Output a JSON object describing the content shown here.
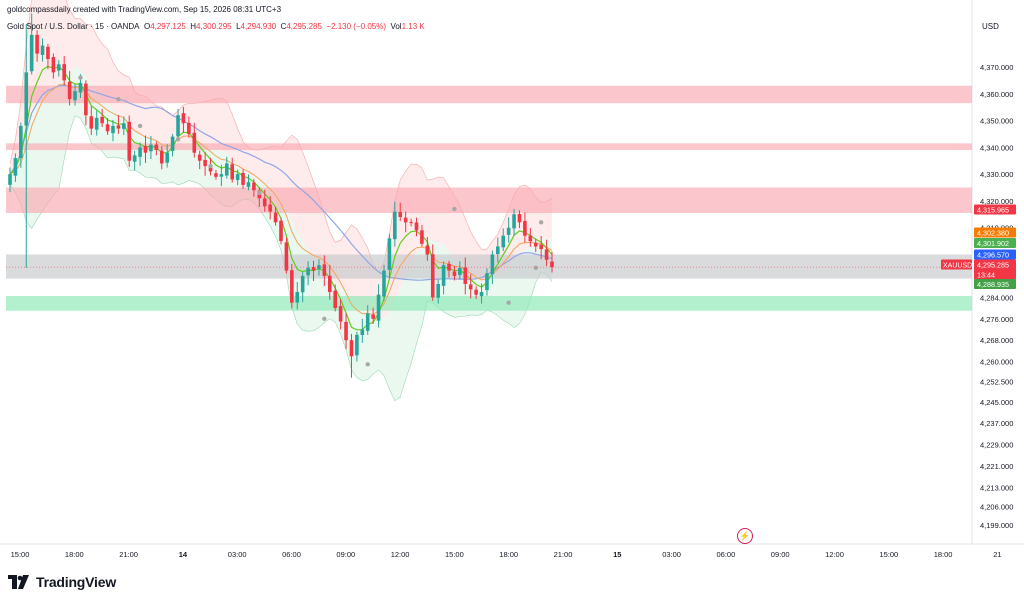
{
  "header": {
    "attribution": "goldcompassdaily created with TradingView.com, Sep 15, 2026 08:31 UTC+3",
    "symbol_name": "Gold Spot / U.S. Dollar · 15 · OANDA",
    "open_label": "O",
    "open": "4,297.125",
    "high_label": "H",
    "high": "4,300.295",
    "low_label": "L",
    "low": "4,294.930",
    "close_label": "C",
    "close": "4,295.285",
    "change": "−2.130 (−0.05%)",
    "vol_label": "Vol",
    "vol": "1.13 K"
  },
  "currency_label": "USD",
  "brand": "TradingView",
  "colors": {
    "up": "#26a69a",
    "down": "#f23645",
    "upper_band_fill": "#fde4e4",
    "lower_band_fill": "#e4f6ea",
    "resistance_zone": "#f9a8b0",
    "support_zone": "#8be8b4",
    "pivot_zone": "#c6c7cb",
    "ema_fast": "#5cd01f",
    "ema_slow": "#f7a35c",
    "long_ma": "#8fa6e8",
    "fractal_dot": "#a8a8a8"
  },
  "chart_data": {
    "type": "candlestick",
    "title": "Gold Spot / U.S. Dollar · 15 · OANDA",
    "ylim": [
      4195,
      4385
    ],
    "y_ticks": [
      "4,370.000",
      "4,360.000",
      "4,350.000",
      "4,340.000",
      "4,330.000",
      "4,320.000",
      "4,310.000",
      "4,292.000",
      "4,284.000",
      "4,276.000",
      "4,268.000",
      "4,260.000",
      "4,252.500",
      "4,245.000",
      "4,237.000",
      "4,229.000",
      "4,221.000",
      "4,213.000",
      "4,206.000",
      "4,199.000"
    ],
    "x_ticks": [
      "15:00",
      "18:00",
      "21:00",
      "14",
      "03:00",
      "06:00",
      "09:00",
      "12:00",
      "15:00",
      "18:00",
      "21:00",
      "15",
      "03:00",
      "06:00",
      "09:00",
      "12:00",
      "15:00",
      "18:00",
      "21"
    ],
    "price_markers": [
      {
        "value": "4,315.965",
        "color": "#f23645"
      },
      {
        "value": "4,302.380",
        "color": "#f57c00"
      },
      {
        "value": "4,301.902",
        "color": "#4caf50"
      },
      {
        "value": "4,296.570",
        "color": "#2962ff"
      },
      {
        "symbol": "XAUUSD",
        "value": "4,295.285",
        "countdown": "13:44",
        "color": "#f23645"
      },
      {
        "value": "4,288.935",
        "color": "#43a047"
      }
    ],
    "zones": [
      {
        "kind": "resistance",
        "from": 4356.5,
        "to": 4363
      },
      {
        "kind": "resistance",
        "from": 4339,
        "to": 4341.5
      },
      {
        "kind": "resistance",
        "from": 4315.5,
        "to": 4325
      },
      {
        "kind": "pivot",
        "from": 4291,
        "to": 4300
      },
      {
        "kind": "support",
        "from": 4279,
        "to": 4284.5
      }
    ],
    "series": [
      {
        "name": "close",
        "values": [
          4330,
          4336,
          4348,
          4368,
          4382,
          4375,
          4378,
          4373,
          4368,
          4371,
          4365,
          4358,
          4361,
          4364,
          4352,
          4347,
          4351,
          4349,
          4346,
          4348,
          4347,
          4349,
          4335,
          4337,
          4340,
          4338,
          4341,
          4339,
          4334,
          4338,
          4344,
          4352,
          4349,
          4345,
          4338,
          4335,
          4333,
          4331,
          4329,
          4330,
          4334,
          4328,
          4330,
          4326,
          4327,
          4324,
          4321,
          4318,
          4316,
          4312,
          4305,
          4294,
          4282,
          4286,
          4292,
          4295,
          4294,
          4296,
          4292,
          4286,
          4280,
          4275,
          4268,
          4262,
          4270,
          4272,
          4278,
          4276,
          4285,
          4294,
          4306,
          4316,
          4314,
          4312,
          4312,
          4309,
          4304,
          4300,
          4284,
          4289,
          4296,
          4294,
          4292,
          4295,
          4289,
          4287,
          4285,
          4286,
          4293,
          4300,
          4303,
          4307,
          4310,
          4315,
          4312,
          4307,
          4305,
          4303,
          4302,
          4298,
          4295.285
        ]
      }
    ]
  }
}
